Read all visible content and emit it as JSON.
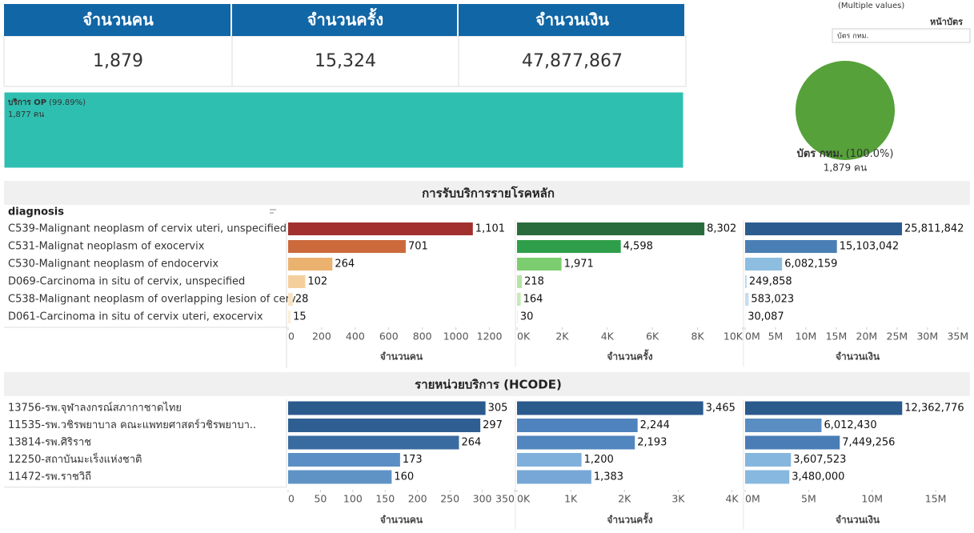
{
  "kpis": [
    {
      "label": "จำนวนคน",
      "value": "1,879"
    },
    {
      "label": "จำนวนครั้ง",
      "value": "15,324"
    },
    {
      "label": "จำนวนเงิน",
      "value": "47,877,867"
    }
  ],
  "filter": {
    "selection": "(Multiple values)",
    "title": "หน้าบัตร",
    "item": "บัตร กทม."
  },
  "chart_data": [
    {
      "type": "stacked_bar",
      "xlim": [
        0,
        100
      ],
      "series": [
        {
          "name": "บริการ OP",
          "color": "#2ebfb0",
          "values": [
            99.89
          ],
          "value_labels": [
            "(99.89%)"
          ],
          "count_labels": [
            "1,877 คน"
          ]
        },
        {
          "color": "#f6b81f",
          "values": [
            0.11
          ]
        }
      ]
    },
    {
      "type": "pie",
      "categories": [
        "บัตร กทม."
      ],
      "values": [
        100
      ],
      "value_labels": [
        "(100.0%)"
      ],
      "count_labels": [
        "1,879 คน"
      ],
      "colors": [
        "#56a13a"
      ]
    },
    {
      "type": "bar_panels",
      "title": "การรับบริการรายโรคหลัก",
      "row_header": "diagnosis",
      "categories": [
        "C539-Malignant neoplasm of cervix uteri, unspecified",
        "C531-Malignat neoplasm of exocervix",
        "C530-Malignant neoplasm of endocervix",
        "D069-Carcinoma in situ of cervix, unspecified",
        "C538-Malignant neoplasm of overlapping lesion of cerv..",
        "D061-Carcinoma in situ of cervix uteri, exocervix"
      ],
      "panels": [
        {
          "xlabel": "จำนวนคน",
          "values": [
            1101,
            701,
            264,
            102,
            28,
            15
          ],
          "value_labels": [
            "1,101",
            "701",
            "264",
            "102",
            "28",
            "15"
          ],
          "colors": [
            "#a1302e",
            "#cc6a3c",
            "#ebb26f",
            "#f4cf9c",
            "#f9e3c3",
            "#fbeed8"
          ],
          "xlim": [
            0,
            1350
          ],
          "xticks": [
            0,
            200,
            400,
            600,
            800,
            1000,
            1200
          ]
        },
        {
          "xlabel": "จำนวนครั้ง",
          "values": [
            8302,
            4598,
            1971,
            218,
            164,
            30
          ],
          "value_labels": [
            "8,302",
            "4,598",
            "1,971",
            "218",
            "164",
            "30"
          ],
          "colors": [
            "#2a6b3d",
            "#2f9e4a",
            "#7ccd6f",
            "#b6e3a8",
            "#c7eab9",
            "#e0f3d8"
          ],
          "xlim": [
            0,
            10000
          ],
          "xticks": [
            {
              "value": 0,
              "label": "0K"
            },
            {
              "value": 2000,
              "label": "2K"
            },
            {
              "value": 4000,
              "label": "4K"
            },
            {
              "value": 6000,
              "label": "6K"
            },
            {
              "value": 8000,
              "label": "8K"
            },
            {
              "value": 10000,
              "label": "10K"
            }
          ]
        },
        {
          "xlabel": "จำนวนเงิน",
          "values": [
            25811842,
            15103042,
            6082159,
            249858,
            583023,
            30087
          ],
          "value_labels": [
            "25,811,842",
            "15,103,042",
            "6,082,159",
            "249,858",
            "583,023",
            "30,087"
          ],
          "colors": [
            "#2c5c8f",
            "#4a7fb5",
            "#8dbee0",
            "#b7d7ee",
            "#c4def1",
            "#dbeaf6"
          ],
          "xlim": [
            0,
            37000000
          ],
          "xticks": [
            {
              "value": 0,
              "label": "0M"
            },
            {
              "value": 5000000,
              "label": "5M"
            },
            {
              "value": 10000000,
              "label": "10M"
            },
            {
              "value": 15000000,
              "label": "15M"
            },
            {
              "value": 20000000,
              "label": "20M"
            },
            {
              "value": 25000000,
              "label": "25M"
            },
            {
              "value": 30000000,
              "label": "30M"
            },
            {
              "value": 35000000,
              "label": "35M"
            }
          ]
        }
      ]
    },
    {
      "type": "bar_panels",
      "title": "รายหน่วยบริการ (HCODE)",
      "categories": [
        "13756-รพ.จุฬาลงกรณ์สภากาชาดไทย",
        "11535-รพ.วชิรพยาบาล คณะแพทยศาสตร์วชิรพยาบา..",
        "13814-รพ.ศิริราช",
        "12250-สถาบันมะเร็งแห่งชาติ",
        "11472-รพ.ราชวิถี"
      ],
      "panels": [
        {
          "xlabel": "จำนวนคน",
          "values": [
            305,
            297,
            264,
            173,
            160
          ],
          "value_labels": [
            "305",
            "297",
            "264",
            "173",
            "160"
          ],
          "colors": [
            "#2b5a8c",
            "#2f5f92",
            "#3a6ba0",
            "#5a8ec4",
            "#5f93c6"
          ],
          "xlim": [
            0,
            350
          ],
          "xticks": [
            0,
            50,
            100,
            150,
            200,
            250,
            300,
            350
          ]
        },
        {
          "xlabel": "จำนวนครั้ง",
          "values": [
            3465,
            2244,
            2193,
            1200,
            1383
          ],
          "value_labels": [
            "3,465",
            "2,244",
            "2,193",
            "1,200",
            "1,383"
          ],
          "colors": [
            "#2b5a8c",
            "#4f83bd",
            "#5186bf",
            "#7fb0dc",
            "#76a7d6"
          ],
          "xlim": [
            0,
            4200
          ],
          "xticks": [
            {
              "value": 0,
              "label": "0K"
            },
            {
              "value": 1000,
              "label": "1K"
            },
            {
              "value": 2000,
              "label": "2K"
            },
            {
              "value": 3000,
              "label": "3K"
            },
            {
              "value": 4000,
              "label": "4K"
            }
          ]
        },
        {
          "xlabel": "จำนวนเงิน",
          "values": [
            12362776,
            6012430,
            7449256,
            3607523,
            3480000
          ],
          "value_labels": [
            "12,362,776",
            "6,012,430",
            "7,449,256",
            "3,607,523",
            "3,480,000"
          ],
          "colors": [
            "#2b5a8c",
            "#5a8dc2",
            "#4a7db6",
            "#85b6de",
            "#87b8df"
          ],
          "xlim": [
            0,
            17700000
          ],
          "xticks": [
            {
              "value": 0,
              "label": "0M"
            },
            {
              "value": 5000000,
              "label": "5M"
            },
            {
              "value": 10000000,
              "label": "10M"
            },
            {
              "value": 15000000,
              "label": "15M"
            }
          ]
        }
      ]
    }
  ]
}
